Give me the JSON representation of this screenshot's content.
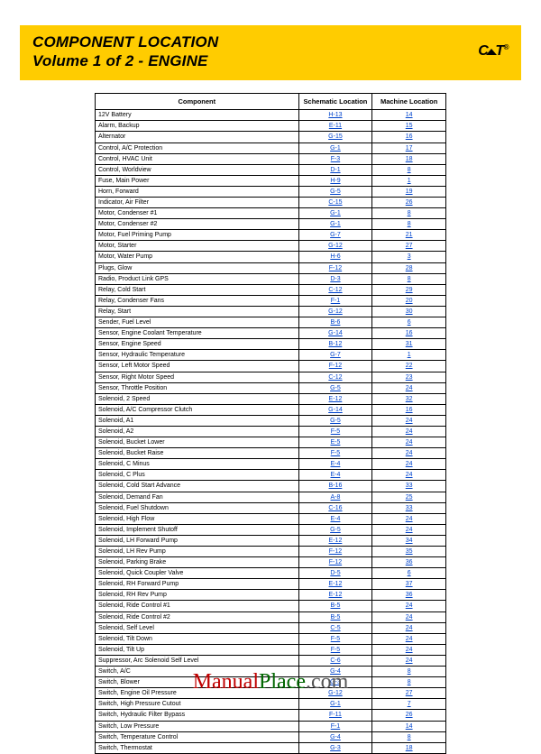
{
  "header": {
    "line1": "COMPONENT LOCATION",
    "line2": "Volume 1 of 2 - ENGINE",
    "brand": "CAT",
    "reg": "®"
  },
  "table": {
    "columns": [
      "Component",
      "Schematic Location",
      "Machine Location"
    ],
    "rows": [
      [
        "12V Battery",
        "H-13",
        "14"
      ],
      [
        "Alarm, Backup",
        "E-11",
        "15"
      ],
      [
        "Alternator",
        "G-15",
        "16"
      ],
      [
        "Control, A/C Protection",
        "G-1",
        "17"
      ],
      [
        "Control, HVAC Unit",
        "F-3",
        "18"
      ],
      [
        "Control, Worldview",
        "D-1",
        "8"
      ],
      [
        "Fuse, Main Power",
        "H-9",
        "1"
      ],
      [
        "Horn, Forward",
        "G-5",
        "19"
      ],
      [
        "Indicator, Air Filter",
        "C-15",
        "26"
      ],
      [
        "Motor, Condenser #1",
        "G-1",
        "8"
      ],
      [
        "Motor, Condenser #2",
        "G-1",
        "8"
      ],
      [
        "Motor, Fuel Priming Pump",
        "G-7",
        "21"
      ],
      [
        "Motor, Starter",
        "G-12",
        "27"
      ],
      [
        "Motor, Water Pump",
        "H-6",
        "3"
      ],
      [
        "Plugs, Glow",
        "F-12",
        "28"
      ],
      [
        "Radio, Product Link GPS",
        "D-3",
        "8"
      ],
      [
        "Relay, Cold Start",
        "C-12",
        "29"
      ],
      [
        "Relay, Condenser Fans",
        "F-1",
        "20"
      ],
      [
        "Relay, Start",
        "G-12",
        "30"
      ],
      [
        "Sender, Fuel Level",
        "B-6",
        "6"
      ],
      [
        "Sensor, Engine Coolant Temperature",
        "G-14",
        "16"
      ],
      [
        "Sensor, Engine Speed",
        "B-12",
        "31"
      ],
      [
        "Sensor, Hydraulic Temperature",
        "G-7",
        "1"
      ],
      [
        "Sensor, Left Motor Speed",
        "F-12",
        "22"
      ],
      [
        "Sensor, Right Motor Speed",
        "C-12",
        "23"
      ],
      [
        "Sensor, Throttle Position",
        "G-5",
        "24"
      ],
      [
        "Solenoid, 2 Speed",
        "E-12",
        "32"
      ],
      [
        "Solenoid, A/C Compressor Clutch",
        "G-14",
        "16"
      ],
      [
        "Solenoid, A1",
        "G-5",
        "24"
      ],
      [
        "Solenoid, A2",
        "F-5",
        "24"
      ],
      [
        "Solenoid, Bucket Lower",
        "E-5",
        "24"
      ],
      [
        "Solenoid, Bucket Raise",
        "F-5",
        "24"
      ],
      [
        "Solenoid, C Minus",
        "E-4",
        "24"
      ],
      [
        "Solenoid, C Plus",
        "E-4",
        "24"
      ],
      [
        "Solenoid, Cold Start Advance",
        "B-16",
        "33"
      ],
      [
        "Solenoid, Demand Fan",
        "A-8",
        "25"
      ],
      [
        "Solenoid, Fuel Shutdown",
        "C-16",
        "33"
      ],
      [
        "Solenoid, High Flow",
        "E-4",
        "24"
      ],
      [
        "Solenoid, Implement Shutoff",
        "G-5",
        "24"
      ],
      [
        "Solenoid, LH Forward Pump",
        "E-12",
        "34"
      ],
      [
        "Solenoid, LH Rev Pump",
        "F-12",
        "35"
      ],
      [
        "Solenoid, Parking Brake",
        "F-12",
        "36"
      ],
      [
        "Solenoid, Quick Coupler Valve",
        "D-5",
        "6"
      ],
      [
        "Solenoid, RH Forward Pump",
        "E-12",
        "37"
      ],
      [
        "Solenoid, RH Rev Pump",
        "E-12",
        "36"
      ],
      [
        "Solenoid, Ride Control #1",
        "B-5",
        "24"
      ],
      [
        "Solenoid, Ride Control #2",
        "B-5",
        "24"
      ],
      [
        "Solenoid, Self Level",
        "C-5",
        "24"
      ],
      [
        "Solenoid, Tilt Down",
        "F-5",
        "24"
      ],
      [
        "Solenoid, Tilt Up",
        "F-5",
        "24"
      ],
      [
        "Suppressor, Arc Solenoid Self Level",
        "C-6",
        "24"
      ],
      [
        "Switch, A/C",
        "G-4",
        "8"
      ],
      [
        "Switch, Blower",
        "G-3",
        "8"
      ],
      [
        "Switch, Engine Oil Pressure",
        "G-12",
        "27"
      ],
      [
        "Switch, High Pressure Cutout",
        "G-1",
        "7"
      ],
      [
        "Switch, Hydraulic Filter Bypass",
        "F-11",
        "26"
      ],
      [
        "Switch, Low Pressure",
        "F-1",
        "14"
      ],
      [
        "Switch, Temperature Control",
        "G-4",
        "8"
      ],
      [
        "Switch, Thermostat",
        "G-3",
        "18"
      ]
    ]
  },
  "watermark": {
    "part1": "Manual",
    "part2": "Place",
    "part3": ".com"
  }
}
